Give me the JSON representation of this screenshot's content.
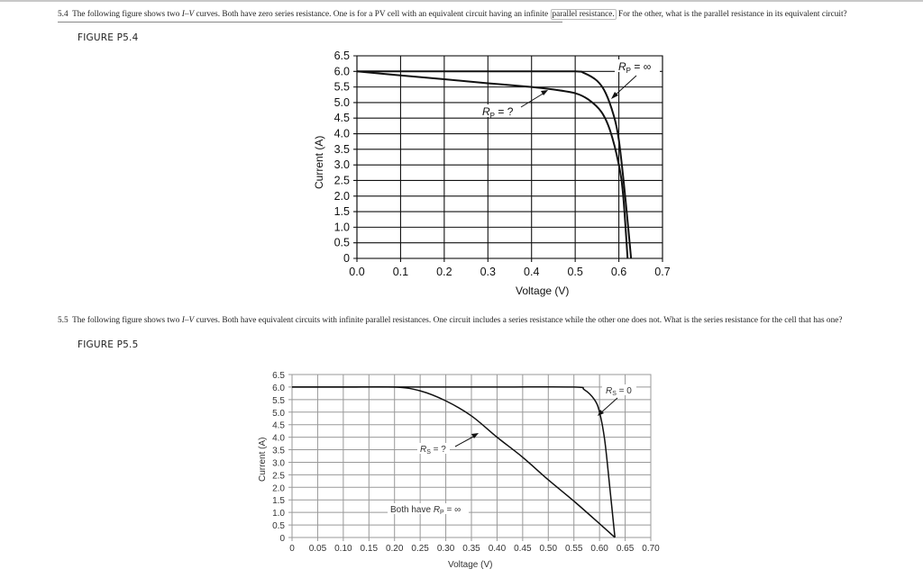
{
  "problem_5_4": {
    "number": "5.4",
    "text_a": "The following figure shows two ",
    "text_iv": "I–V",
    "text_b": " curves. Both have zero series resistance. One is for a PV cell with an equivalent circuit having an infinite ",
    "text_hl": "parallel resistance.",
    "text_c": " For the other, what is the parallel resistance in its equivalent circuit?",
    "figure_label": "FIGURE P5.4"
  },
  "problem_5_5": {
    "number": "5.5",
    "text_a": "The following figure shows two ",
    "text_iv": "I–V",
    "text_b": " curves. Both have equivalent circuits with infinite parallel resistances. One circuit includes a series resistance while the other one does not. What is the series resistance for the cell that has one?",
    "figure_label": "FIGURE P5.5"
  },
  "chart_data": [
    {
      "id": "P5.4",
      "type": "line",
      "title": "",
      "xlabel": "Voltage (V)",
      "ylabel": "Current (A)",
      "xlim": [
        0,
        0.7
      ],
      "ylim": [
        0,
        6.5
      ],
      "xticks": [
        "0.0",
        "0.1",
        "0.2",
        "0.3",
        "0.4",
        "0.5",
        "0.6",
        "0.7"
      ],
      "yticks": [
        "0",
        "0.5",
        "1.0",
        "1.5",
        "2.0",
        "2.5",
        "3.0",
        "3.5",
        "4.0",
        "4.5",
        "5.0",
        "5.5",
        "6.0",
        "6.5"
      ],
      "grid": true,
      "series": [
        {
          "name": "RP = ∞",
          "x": [
            0,
            0.1,
            0.2,
            0.3,
            0.4,
            0.5,
            0.52,
            0.55,
            0.57,
            0.59,
            0.6,
            0.61,
            0.62,
            0.628
          ],
          "y": [
            6.0,
            6.0,
            6.0,
            6.0,
            6.0,
            6.0,
            5.95,
            5.7,
            5.3,
            4.5,
            3.8,
            2.6,
            1.2,
            0
          ]
        },
        {
          "name": "RP = ?",
          "x": [
            0,
            0.1,
            0.2,
            0.3,
            0.4,
            0.45,
            0.5,
            0.53,
            0.56,
            0.58,
            0.6,
            0.61,
            0.62
          ],
          "y": [
            6.0,
            5.87,
            5.75,
            5.62,
            5.5,
            5.42,
            5.3,
            5.1,
            4.7,
            4.1,
            3.0,
            2.0,
            0
          ]
        }
      ],
      "annotations": [
        {
          "text": "RP = ∞",
          "points_to_series": "RP = ∞"
        },
        {
          "text": "RP = ?",
          "points_to_series": "RP = ?"
        }
      ]
    },
    {
      "id": "P5.5",
      "type": "line",
      "title": "",
      "xlabel": "Voltage (V)",
      "ylabel": "Current (A)",
      "xlim": [
        0,
        0.7
      ],
      "ylim": [
        0,
        6.5
      ],
      "xticks": [
        "0",
        "0.05",
        "0.10",
        "0.15",
        "0.20",
        "0.25",
        "0.30",
        "0.35",
        "0.40",
        "0.45",
        "0.50",
        "0.55",
        "0.60",
        "0.65",
        "0.70"
      ],
      "yticks": [
        "0",
        "0.5",
        "1.0",
        "1.5",
        "2.0",
        "2.5",
        "3.0",
        "3.5",
        "4.0",
        "4.5",
        "5.0",
        "5.5",
        "6.0",
        "6.5"
      ],
      "grid": true,
      "series": [
        {
          "name": "RS = 0",
          "x": [
            0,
            0.2,
            0.4,
            0.55,
            0.57,
            0.59,
            0.6,
            0.61,
            0.62,
            0.63
          ],
          "y": [
            6.0,
            6.0,
            6.0,
            6.0,
            5.9,
            5.5,
            5.0,
            3.9,
            2.0,
            0
          ]
        },
        {
          "name": "RS = ?",
          "x": [
            0,
            0.1,
            0.2,
            0.25,
            0.3,
            0.35,
            0.4,
            0.45,
            0.5,
            0.55,
            0.6,
            0.63
          ],
          "y": [
            6.0,
            6.0,
            6.0,
            5.85,
            5.45,
            4.85,
            4.0,
            3.2,
            2.3,
            1.45,
            0.55,
            0
          ]
        }
      ],
      "annotations": [
        {
          "text": "RS = 0",
          "points_to_series": "RS = 0"
        },
        {
          "text": "RS = ?",
          "points_to_series": "RS = ?"
        },
        {
          "text": "Both have RP = ∞"
        }
      ]
    }
  ]
}
